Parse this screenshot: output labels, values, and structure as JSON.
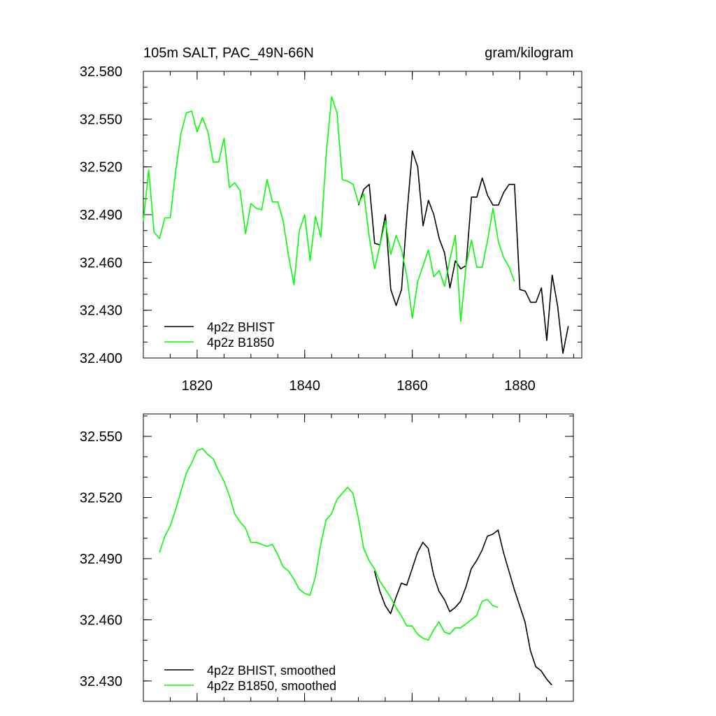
{
  "chart_data": [
    {
      "type": "line",
      "title": "105m SALT, PAC_49N-66N",
      "units": "gram/kilogram",
      "xlim": [
        1810,
        1891.5
      ],
      "xticks": [
        1820,
        1840,
        1860,
        1880
      ],
      "xtick_labels": true,
      "ylim": [
        32.4,
        32.58
      ],
      "yticks": [
        {
          "value": 32.4,
          "label": "32.400"
        },
        {
          "value": 32.43,
          "label": "32.430"
        },
        {
          "value": 32.46,
          "label": "32.460"
        },
        {
          "value": 32.49,
          "label": "32.490"
        },
        {
          "value": 32.52,
          "label": "32.520"
        },
        {
          "value": 32.55,
          "label": "32.550"
        },
        {
          "value": 32.58,
          "label": "32.580"
        }
      ],
      "legend": "lower-left",
      "series": [
        {
          "name": "4p2z BHIST",
          "color": "#000000",
          "x": [
            1850,
            1851,
            1852,
            1853,
            1854,
            1855,
            1856,
            1857,
            1858,
            1859,
            1860,
            1861,
            1862,
            1863,
            1864,
            1865,
            1866,
            1867,
            1868,
            1869,
            1870,
            1871,
            1872,
            1873,
            1874,
            1875,
            1876,
            1877,
            1878,
            1879,
            1880,
            1881,
            1882,
            1883,
            1884,
            1885,
            1886,
            1887,
            1888,
            1889
          ],
          "values": [
            32.496,
            32.506,
            32.509,
            32.472,
            32.471,
            32.49,
            32.443,
            32.433,
            32.443,
            32.49,
            32.53,
            32.52,
            32.483,
            32.499,
            32.49,
            32.475,
            32.466,
            32.444,
            32.461,
            32.456,
            32.458,
            32.501,
            32.501,
            32.513,
            32.502,
            32.496,
            32.496,
            32.504,
            32.509,
            32.509,
            32.443,
            32.442,
            32.435,
            32.435,
            32.444,
            32.411,
            32.452,
            32.433,
            32.403,
            32.42
          ]
        },
        {
          "name": "4p2z B1850",
          "color": "#00ff00",
          "x": [
            1810,
            1811,
            1812,
            1813,
            1814,
            1815,
            1816,
            1817,
            1818,
            1819,
            1820,
            1821,
            1822,
            1823,
            1824,
            1825,
            1826,
            1827,
            1828,
            1829,
            1830,
            1831,
            1832,
            1833,
            1834,
            1835,
            1836,
            1837,
            1838,
            1839,
            1840,
            1841,
            1842,
            1843,
            1844,
            1845,
            1846,
            1847,
            1848,
            1849,
            1850,
            1851,
            1852,
            1853,
            1854,
            1855,
            1856,
            1857,
            1858,
            1859,
            1860,
            1861,
            1862,
            1863,
            1864,
            1865,
            1866,
            1867,
            1868,
            1869,
            1870,
            1871,
            1872,
            1873,
            1874,
            1875,
            1876,
            1877,
            1878,
            1879
          ],
          "values": [
            32.486,
            32.518,
            32.479,
            32.475,
            32.488,
            32.488,
            32.517,
            32.541,
            32.554,
            32.555,
            32.542,
            32.551,
            32.542,
            32.523,
            32.523,
            32.538,
            32.507,
            32.51,
            32.505,
            32.478,
            32.497,
            32.494,
            32.493,
            32.512,
            32.498,
            32.498,
            32.486,
            32.464,
            32.446,
            32.48,
            32.49,
            32.461,
            32.489,
            32.476,
            32.528,
            32.564,
            32.554,
            32.512,
            32.511,
            32.509,
            32.497,
            32.503,
            32.476,
            32.456,
            32.471,
            32.486,
            32.465,
            32.477,
            32.468,
            32.451,
            32.425,
            32.448,
            32.458,
            32.468,
            32.451,
            32.455,
            32.445,
            32.462,
            32.477,
            32.423,
            32.458,
            32.474,
            32.457,
            32.457,
            32.474,
            32.494,
            32.473,
            32.463,
            32.457,
            32.448
          ]
        }
      ]
    },
    {
      "type": "line",
      "xlim": [
        1810,
        1890
      ],
      "xticks": [
        1820,
        1840,
        1860,
        1880
      ],
      "xtick_labels": false,
      "ylim": [
        32.42,
        32.561
      ],
      "yticks": [
        {
          "value": 32.43,
          "label": "32.430"
        },
        {
          "value": 32.46,
          "label": "32.460"
        },
        {
          "value": 32.49,
          "label": "32.490"
        },
        {
          "value": 32.52,
          "label": "32.520"
        },
        {
          "value": 32.55,
          "label": "32.550"
        }
      ],
      "legend": "lower-left",
      "series": [
        {
          "name": "4p2z BHIST, smoothed",
          "color": "#000000",
          "x": [
            1853,
            1854,
            1855,
            1856,
            1857,
            1858,
            1859,
            1860,
            1861,
            1862,
            1863,
            1864,
            1865,
            1866,
            1867,
            1868,
            1869,
            1870,
            1871,
            1872,
            1873,
            1874,
            1875,
            1876,
            1877,
            1878,
            1879,
            1880,
            1881,
            1882,
            1883,
            1884,
            1885,
            1886
          ],
          "values": [
            32.484,
            32.474,
            32.467,
            32.463,
            32.471,
            32.478,
            32.477,
            32.485,
            32.493,
            32.498,
            32.495,
            32.482,
            32.474,
            32.47,
            32.464,
            32.466,
            32.469,
            32.476,
            32.485,
            32.489,
            32.494,
            32.501,
            32.502,
            32.504,
            32.493,
            32.484,
            32.475,
            32.467,
            32.459,
            32.445,
            32.437,
            32.435,
            32.431,
            32.428
          ]
        },
        {
          "name": "4p2z B1850, smoothed",
          "color": "#00ff00",
          "x": [
            1813,
            1814,
            1815,
            1816,
            1817,
            1818,
            1819,
            1820,
            1821,
            1822,
            1823,
            1824,
            1825,
            1826,
            1827,
            1828,
            1829,
            1830,
            1831,
            1832,
            1833,
            1834,
            1835,
            1836,
            1837,
            1838,
            1839,
            1840,
            1841,
            1842,
            1843,
            1844,
            1845,
            1846,
            1847,
            1848,
            1849,
            1850,
            1851,
            1852,
            1853,
            1854,
            1855,
            1856,
            1857,
            1858,
            1859,
            1860,
            1861,
            1862,
            1863,
            1864,
            1865,
            1866,
            1867,
            1868,
            1869,
            1870,
            1871,
            1872,
            1873,
            1874,
            1875,
            1876
          ],
          "values": [
            32.493,
            32.501,
            32.506,
            32.514,
            32.523,
            32.532,
            32.537,
            32.543,
            32.544,
            32.541,
            32.539,
            32.533,
            32.528,
            32.521,
            32.512,
            32.508,
            32.505,
            32.498,
            32.498,
            32.497,
            32.496,
            32.497,
            32.492,
            32.486,
            32.484,
            32.48,
            32.475,
            32.473,
            32.472,
            32.481,
            32.497,
            32.509,
            32.512,
            32.519,
            32.522,
            32.525,
            32.522,
            32.51,
            32.495,
            32.489,
            32.485,
            32.479,
            32.475,
            32.471,
            32.466,
            32.462,
            32.457,
            32.457,
            32.453,
            32.451,
            32.45,
            32.455,
            32.459,
            32.454,
            32.453,
            32.456,
            32.456,
            32.458,
            32.46,
            32.462,
            32.469,
            32.47,
            32.467,
            32.466
          ]
        }
      ]
    }
  ]
}
